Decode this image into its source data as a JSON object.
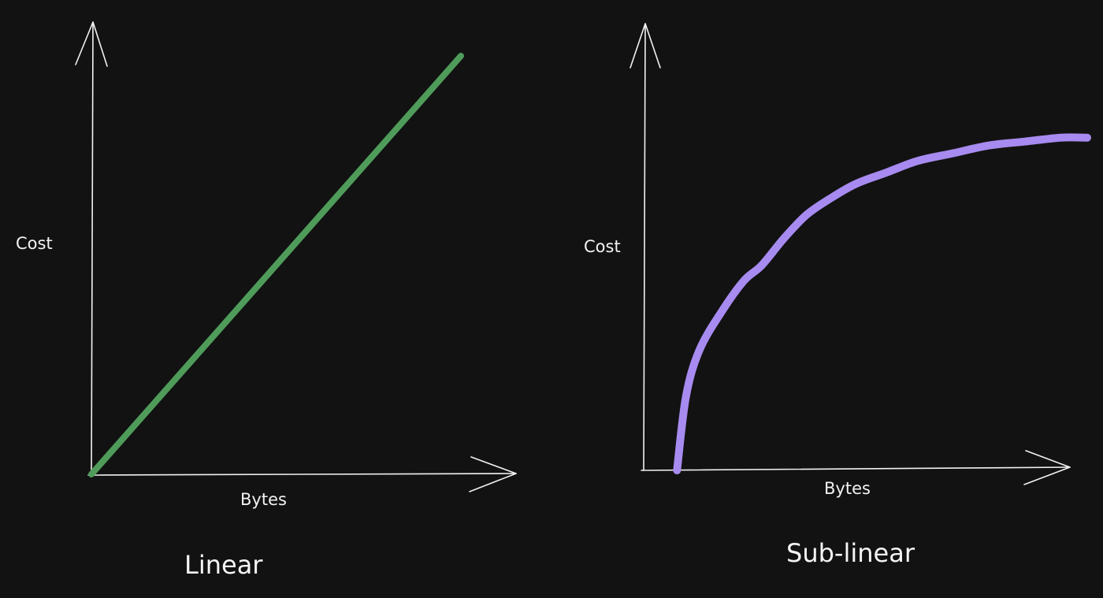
{
  "chart_data": [
    {
      "type": "line",
      "title": "Linear",
      "xlabel": "Bytes",
      "ylabel": "Cost",
      "xlim": [
        0,
        100
      ],
      "ylim": [
        0,
        100
      ],
      "grid": false,
      "axis_tick_labels": false,
      "series": [
        {
          "color": "#4f9c5a",
          "x": [
            0,
            100
          ],
          "y": [
            0,
            100
          ]
        }
      ]
    },
    {
      "type": "line",
      "title": "Sub-linear",
      "xlabel": "Bytes",
      "ylabel": "Cost",
      "xlim": [
        0,
        100
      ],
      "ylim": [
        0,
        100
      ],
      "grid": false,
      "axis_tick_labels": false,
      "series": [
        {
          "color": "#a78bf0",
          "x": [
            8,
            10,
            13,
            18,
            23,
            27,
            32,
            37,
            42,
            48,
            55,
            62,
            70,
            78,
            86,
            94,
            100
          ],
          "y": [
            0,
            19,
            31,
            41,
            49,
            53,
            60,
            66,
            70,
            74,
            77,
            80,
            82,
            84,
            85,
            86,
            86
          ]
        }
      ]
    }
  ]
}
